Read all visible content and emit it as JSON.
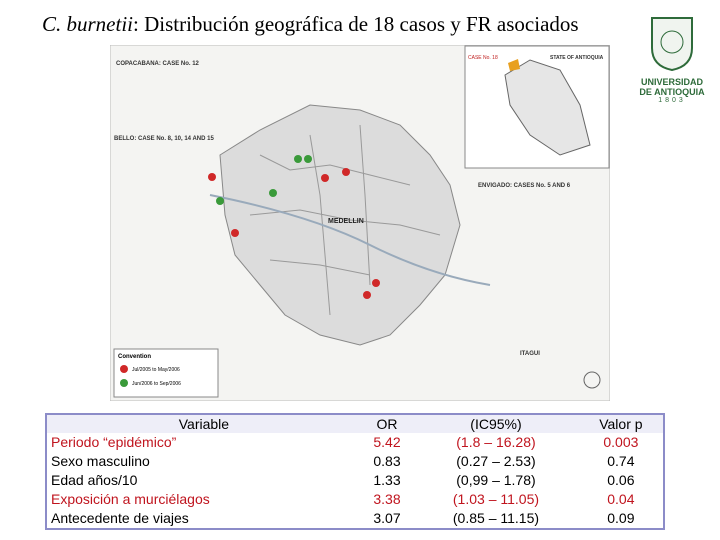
{
  "title": {
    "species": "C. burnetii",
    "text": ": Distribución geográfica de 18 casos y FR asociados"
  },
  "logo": {
    "name": "UNIVERSIDAD DE ANTIOQUIA",
    "year": "1803"
  },
  "map": {
    "labels": {
      "copacabana": "COPACABANA: CASE No. 12",
      "bello": "BELLO: CASE No. 8, 10, 14 AND 15",
      "envigado": "ENVIGADO: CASES No. 5 AND 6",
      "medellin": "MEDELLIN",
      "itagui": "ITAGUI",
      "inset_state": "STATE OF ANTIOQUIA",
      "inset_case": "CASE No. 18"
    },
    "convention": {
      "title": "Convention",
      "items": [
        "Jul/2005 to May/2006",
        "Jun/2006 to Sep/2006"
      ]
    }
  },
  "table": {
    "header": [
      "Variable",
      "OR",
      "(IC95%)",
      "Valor p"
    ],
    "rows": [
      {
        "cells": [
          "Periodo “epidémico”",
          "5.42",
          "(1.8 – 16.28)",
          "0.003"
        ],
        "highlight": true
      },
      {
        "cells": [
          "Sexo masculino",
          "0.83",
          "(0.27 – 2.53)",
          "0.74"
        ],
        "highlight": false
      },
      {
        "cells": [
          "Edad años/10",
          "1.33",
          "(0,99 – 1.78)",
          "0.06"
        ],
        "highlight": false
      },
      {
        "cells": [
          "Exposición a murciélagos",
          "3.38",
          "(1.03 – 11.05)",
          "0.04"
        ],
        "highlight": true
      },
      {
        "cells": [
          "Antecedente de viajes",
          "3.07",
          "(0.85 – 11.15)",
          "0.09"
        ],
        "highlight": false
      }
    ]
  }
}
